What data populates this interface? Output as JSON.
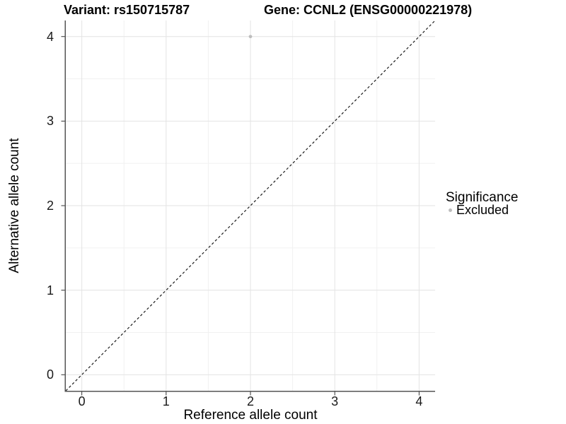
{
  "title": {
    "left": "Variant: rs150715787",
    "right": "Gene: CCNL2 (ENSG00000221978)"
  },
  "x_axis": {
    "label": "Reference allele count"
  },
  "y_axis": {
    "label": "Alternative allele count"
  },
  "legend": {
    "title": "Significance",
    "items": [
      {
        "label": "Excluded",
        "color": "#bdbdbd"
      }
    ]
  },
  "chart_data": {
    "type": "scatter",
    "title": "Variant: rs150715787    Gene: CCNL2 (ENSG00000221978)",
    "xlabel": "Reference allele count",
    "ylabel": "Alternative allele count",
    "xlim": [
      -0.19,
      4.19
    ],
    "ylim": [
      -0.19,
      4.19
    ],
    "x_ticks": [
      0,
      1,
      2,
      3,
      4
    ],
    "y_ticks": [
      0,
      1,
      2,
      3,
      4
    ],
    "x_minor_ticks": [
      0.5,
      1.5,
      2.5,
      3.5
    ],
    "y_minor_ticks": [
      0.5,
      1.5,
      2.5,
      3.5
    ],
    "grid": true,
    "legend_position": "right",
    "reference_line": {
      "kind": "identity",
      "slope": 1,
      "intercept": 0,
      "style": "dashed",
      "color": "#1a1a1a"
    },
    "series": [
      {
        "name": "Excluded",
        "color": "#bdbdbd",
        "points": [
          {
            "x": 2,
            "y": 4
          }
        ]
      }
    ]
  },
  "colors": {
    "background": "#ffffff",
    "grid_major": "#e3e3e3",
    "grid_minor": "#f1f1f1",
    "axis_line": "#555555",
    "tick_mark": "#333333",
    "tick_label": "#1a1a1a",
    "point": "#bdbdbd"
  }
}
